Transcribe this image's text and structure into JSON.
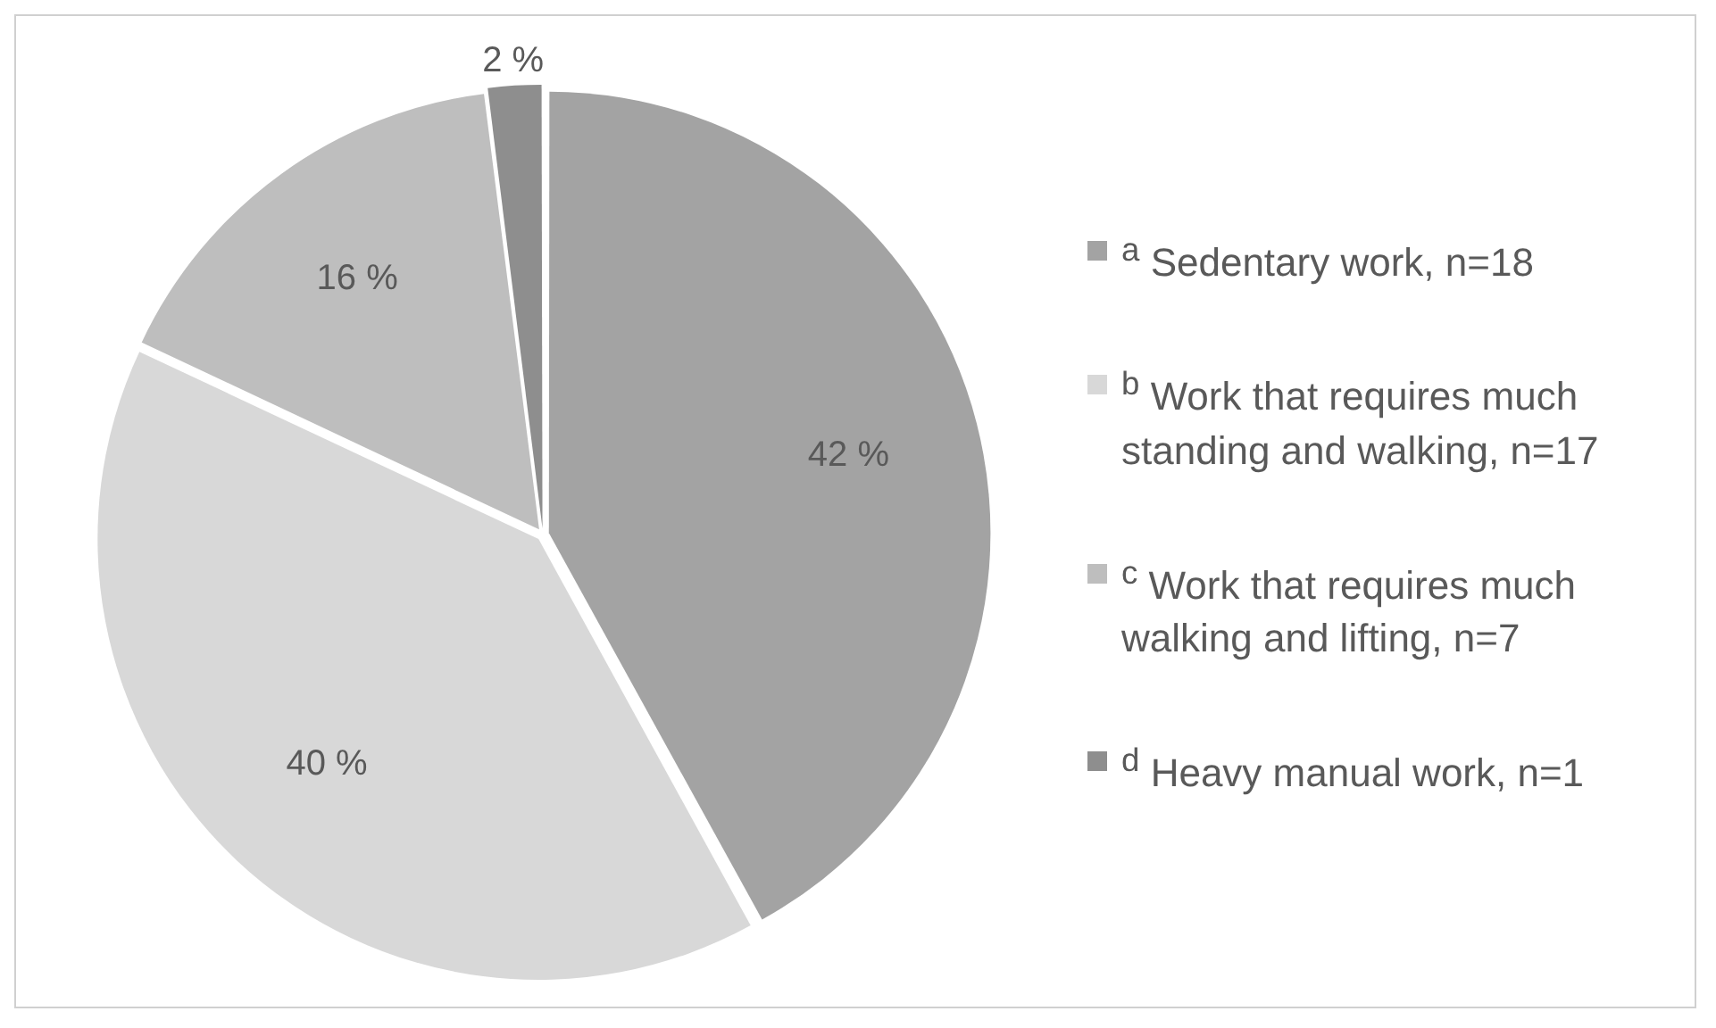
{
  "chart_data": {
    "type": "pie",
    "categories": [
      "$^{a}$ Sedentary work, n=18",
      "$^{b}$ Work that requires much standing and walking, n=17",
      "$^{c}$ Work that requires much walking and lifting, n=7",
      "$^{d}$ Heavy manual work, n=1"
    ],
    "values": [
      42,
      40,
      16,
      2
    ],
    "colors": [
      "#a3a3a3",
      "#d8d8d8",
      "#bebebe",
      "#8e8e8e"
    ],
    "value_labels": [
      "42 %",
      "40 %",
      "16 %",
      "2 %"
    ],
    "legend": "right"
  }
}
